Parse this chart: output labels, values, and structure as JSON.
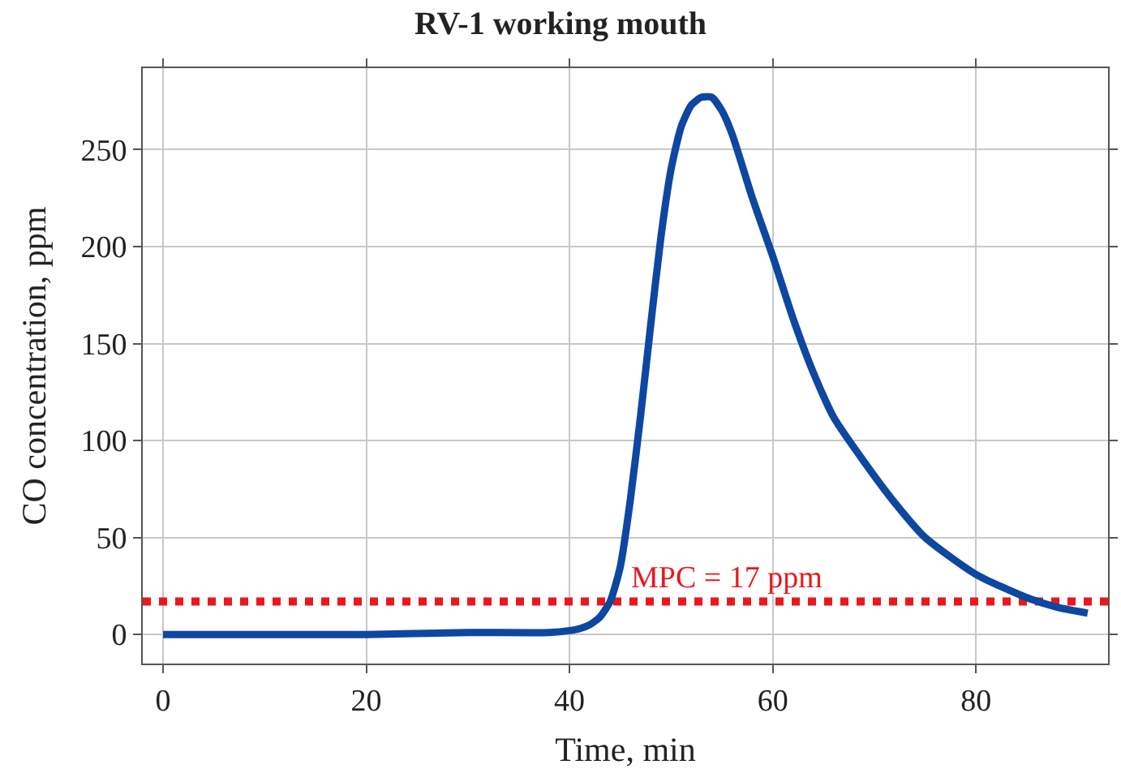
{
  "chart_data": {
    "type": "line",
    "title": "RV-1 working mouth",
    "xlabel": "Time, min",
    "ylabel": "CO concentration, ppm",
    "x": [
      0,
      10,
      20,
      30,
      38,
      40,
      41,
      42,
      43,
      44,
      45,
      46,
      47,
      48,
      49,
      50,
      51,
      52,
      53,
      54,
      55,
      56,
      58,
      60,
      62,
      64,
      66,
      69,
      72,
      75,
      80,
      85,
      88,
      91
    ],
    "series": [
      {
        "color": "#0d47a1",
        "values": [
          0,
          0,
          0,
          1,
          1,
          2,
          3,
          5,
          9,
          17,
          35,
          70,
          113,
          160,
          205,
          240,
          262,
          273,
          277,
          277,
          270,
          258,
          225,
          195,
          163,
          135,
          112,
          89,
          68,
          50,
          31,
          19,
          14,
          11
        ]
      }
    ],
    "xlim": [
      -2,
      93
    ],
    "ylim": [
      -15,
      292
    ],
    "xticks": [
      0,
      20,
      40,
      60,
      80
    ],
    "yticks": [
      0,
      50,
      100,
      150,
      200,
      250
    ],
    "grid": true,
    "marker": "none",
    "line_style": "solid",
    "ref_lines": [
      {
        "axis": "y",
        "value": 17,
        "label": "MPC = 17 ppm",
        "color": "#e8191c",
        "line_style": "dotted"
      }
    ]
  }
}
